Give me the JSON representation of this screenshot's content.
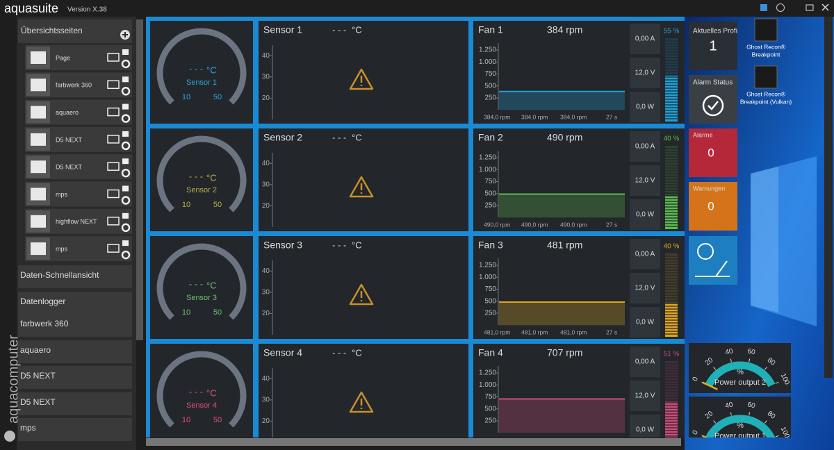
{
  "app": {
    "name": "aquasuite",
    "version": "Version X.38"
  },
  "sidebar": {
    "title": "Übersichtsseiten",
    "pages": [
      "Page",
      "farbwerk 360",
      "aquaero",
      "D5 NEXT",
      "D5 NEXT",
      "mps",
      "highflow NEXT",
      "mps"
    ],
    "sections": [
      "Daten-Schnellansicht",
      "Datenlogger",
      "farbwerk 360",
      "aquaero",
      "D5 NEXT",
      "D5 NEXT",
      "mps"
    ],
    "brand": "aquacomputer"
  },
  "rows": [
    {
      "gauge": {
        "value": "- - -",
        "unit": "°C",
        "name": "Sensor 1",
        "min": 10,
        "max": 50,
        "color": "#2aa8e0"
      },
      "sensor": {
        "title": "Sensor 1",
        "value": "- - -",
        "unit": "°C",
        "ylim": [
          10,
          45
        ],
        "yticks": [
          20,
          30,
          40
        ]
      },
      "fan": {
        "title": "Fan 1",
        "rpm": "384 rpm",
        "value": 384,
        "color": "#1ea0d8",
        "ylim": [
          0,
          1400
        ],
        "yticks": [
          250,
          500,
          750,
          {
            "value": 1000,
            "label": "1.000"
          },
          {
            "value": 1250,
            "label": "1.250"
          }
        ],
        "stats": [
          "384,0 rpm",
          "384,0 rpm",
          "384,0 rpm",
          "27 s"
        ],
        "current": "0,00 A",
        "voltage": "12,0 V",
        "power": "0,0 W",
        "percent": 55,
        "percent_label": "55 %"
      }
    },
    {
      "gauge": {
        "value": "- - -",
        "unit": "°C",
        "name": "Sensor 2",
        "min": 10,
        "max": 50,
        "color": "#b8b04a"
      },
      "sensor": {
        "title": "Sensor 2",
        "value": "- - -",
        "unit": "°C",
        "ylim": [
          10,
          45
        ],
        "yticks": [
          20,
          30,
          40
        ]
      },
      "fan": {
        "title": "Fan 2",
        "rpm": "490 rpm",
        "value": 490,
        "color": "#5cbc4c",
        "ylim": [
          0,
          1400
        ],
        "yticks": [
          250,
          500,
          750,
          {
            "value": 1000,
            "label": "1.000"
          },
          {
            "value": 1250,
            "label": "1.250"
          }
        ],
        "stats": [
          "490,0 rpm",
          "490,0 rpm",
          "490,0 rpm",
          "27 s"
        ],
        "current": "0,00 A",
        "voltage": "12,0 V",
        "power": "0,0 W",
        "percent": 40,
        "percent_label": "40 %"
      }
    },
    {
      "gauge": {
        "value": "- - -",
        "unit": "°C",
        "name": "Sensor 3",
        "min": 10,
        "max": 50,
        "color": "#6cc070"
      },
      "sensor": {
        "title": "Sensor 3",
        "value": "- - -",
        "unit": "°C",
        "ylim": [
          10,
          45
        ],
        "yticks": [
          20,
          30,
          40
        ]
      },
      "fan": {
        "title": "Fan 3",
        "rpm": "481 rpm",
        "value": 481,
        "color": "#e0a420",
        "ylim": [
          0,
          1400
        ],
        "yticks": [
          250,
          500,
          750,
          {
            "value": 1000,
            "label": "1.000"
          },
          {
            "value": 1250,
            "label": "1.250"
          }
        ],
        "stats": [
          "481,0 rpm",
          "481,0 rpm",
          "481,0 rpm",
          "27 s"
        ],
        "current": "0,00 A",
        "voltage": "12,0 V",
        "power": "0,0 W",
        "percent": 40,
        "percent_label": "40 %"
      }
    },
    {
      "gauge": {
        "value": "- - -",
        "unit": "°C",
        "name": "Sensor 4",
        "min": 10,
        "max": 50,
        "color": "#e0507a"
      },
      "sensor": {
        "title": "Sensor 4",
        "value": "- - -",
        "unit": "°C",
        "ylim": [
          10,
          45
        ],
        "yticks": [
          20,
          30,
          40
        ]
      },
      "fan": {
        "title": "Fan 4",
        "rpm": "707 rpm",
        "value": 707,
        "color": "#d04a7a",
        "ylim": [
          0,
          1400
        ],
        "yticks": [
          250,
          500,
          750,
          {
            "value": 1000,
            "label": "1.000"
          },
          {
            "value": 1250,
            "label": "1.250"
          }
        ],
        "current": "0,00 A",
        "voltage": "12,0 V",
        "power": "0,0 W",
        "percent": 51,
        "percent_label": "51 %"
      }
    }
  ],
  "tiles": {
    "profile": {
      "label": "Aktuelles Profi",
      "value": "1"
    },
    "alarm_status": {
      "label": "Alarm Status"
    },
    "alarms": {
      "label": "Alarme",
      "value": 0
    },
    "warnings": {
      "label": "Warnungen",
      "value": 0
    }
  },
  "power_outputs": [
    {
      "label": "Power output 2",
      "unit": "%",
      "value": 0,
      "lim": [
        0,
        100
      ],
      "ticks": [
        0,
        20,
        40,
        60,
        80,
        100
      ]
    },
    {
      "label": "Power output 1",
      "unit": "%",
      "value": 0,
      "lim": [
        0,
        100
      ],
      "ticks": [
        0,
        20,
        40,
        60,
        80,
        100
      ]
    }
  ],
  "desktop_icons": [
    {
      "lines": [
        "Ghost Recon®",
        "Breakpoint"
      ]
    },
    {
      "lines": [
        "Ghost Recon®",
        "Breakpoint (Vulkan)"
      ]
    }
  ]
}
